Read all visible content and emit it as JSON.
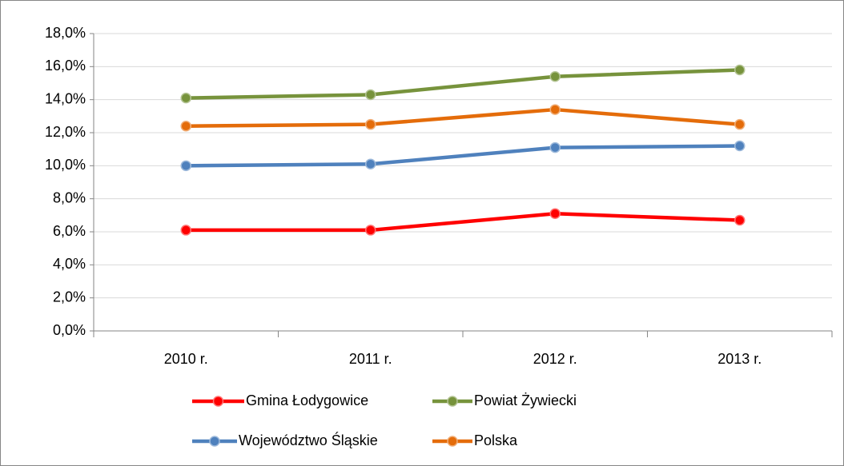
{
  "chart_data": {
    "type": "line",
    "categories": [
      "2010 r.",
      "2011 r.",
      "2012 r.",
      "2013 r."
    ],
    "series": [
      {
        "name": "Gmina Łodygowice",
        "color": "#ff0000",
        "values": [
          6.1,
          6.1,
          7.1,
          6.7
        ]
      },
      {
        "name": "Powiat Żywiecki",
        "color": "#77933c",
        "values": [
          14.1,
          14.3,
          15.4,
          15.8
        ]
      },
      {
        "name": "Województwo Śląskie",
        "color": "#4f81bd",
        "values": [
          10.0,
          10.1,
          11.1,
          11.2
        ]
      },
      {
        "name": "Polska",
        "color": "#e46c0a",
        "values": [
          12.4,
          12.5,
          13.4,
          12.5
        ]
      }
    ],
    "ylim": [
      0,
      18
    ],
    "yticks": [
      {
        "value": 0,
        "label": "0,0%"
      },
      {
        "value": 2,
        "label": "2,0%"
      },
      {
        "value": 4,
        "label": "4,0%"
      },
      {
        "value": 6,
        "label": "6,0%"
      },
      {
        "value": 8,
        "label": "8,0%"
      },
      {
        "value": 10,
        "label": "10,0%"
      },
      {
        "value": 12,
        "label": "12,0%"
      },
      {
        "value": 14,
        "label": "14,0%"
      },
      {
        "value": 16,
        "label": "16,0%"
      },
      {
        "value": 18,
        "label": "18,0%"
      }
    ],
    "grid": true,
    "legend": "bottom"
  }
}
